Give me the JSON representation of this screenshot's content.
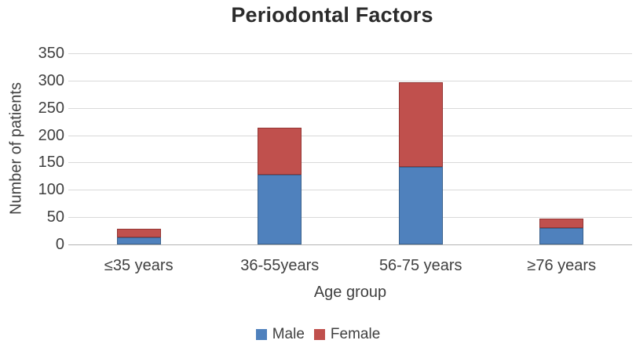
{
  "chart_data": {
    "type": "bar",
    "stacked": true,
    "title": "Periodontal Factors",
    "xlabel": "Age group",
    "ylabel": "Number of patients",
    "categories": [
      "≤35 years",
      "36-55years",
      "56-75 years",
      "≥76 years"
    ],
    "series": [
      {
        "name": "Male",
        "color": "#4F81BD",
        "border": "#3A618C",
        "values": [
          13,
          128,
          142,
          30
        ]
      },
      {
        "name": "Female",
        "color": "#C0504D",
        "border": "#943634",
        "values": [
          15,
          86,
          155,
          18
        ]
      }
    ],
    "totals": [
      28,
      214,
      297,
      48
    ],
    "ylim": [
      0,
      350
    ],
    "yticks": [
      0,
      50,
      100,
      150,
      200,
      250,
      300,
      350
    ],
    "grid": true,
    "legend_position": "bottom"
  },
  "colors": {
    "background": "#ffffff",
    "gridline": "#d9d9d9",
    "axis_line": "#b3b3b3",
    "text": "#404040",
    "title": "#2b2b2b"
  }
}
